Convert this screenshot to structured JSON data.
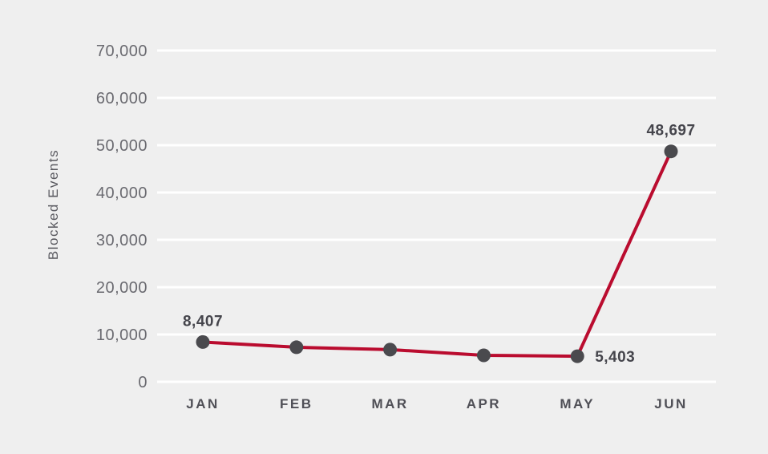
{
  "chart_data": {
    "type": "line",
    "title": "",
    "xlabel": "",
    "ylabel": "Blocked Events",
    "categories": [
      "JAN",
      "FEB",
      "MAR",
      "APR",
      "MAY",
      "JUN"
    ],
    "series": [
      {
        "name": "Blocked Events",
        "values": [
          8407,
          7300,
          6800,
          5600,
          5403,
          48697
        ]
      }
    ],
    "estimated_points": [
      "FEB",
      "MAR",
      "APR"
    ],
    "point_labels": [
      "8,407",
      "",
      "",
      "",
      "5,403",
      "48,697"
    ],
    "point_label_positions": [
      "above",
      "",
      "",
      "",
      "right",
      "above"
    ],
    "ylim": [
      0,
      70000
    ],
    "ytick_step": 10000,
    "ytick_labels": [
      "0",
      "10,000",
      "20,000",
      "30,000",
      "40,000",
      "50,000",
      "60,000",
      "70,000"
    ],
    "grid": "horizontal-only",
    "legend": "none",
    "colors": {
      "background": "#efefef",
      "gridline": "#ffffff",
      "line": "#ba0c2f",
      "point": "#4a4a4e",
      "tick_text": "#6a6a70",
      "month_text": "#4f4f56",
      "data_label_text": "#45454c",
      "axis_title_text": "#5a5a60"
    }
  }
}
